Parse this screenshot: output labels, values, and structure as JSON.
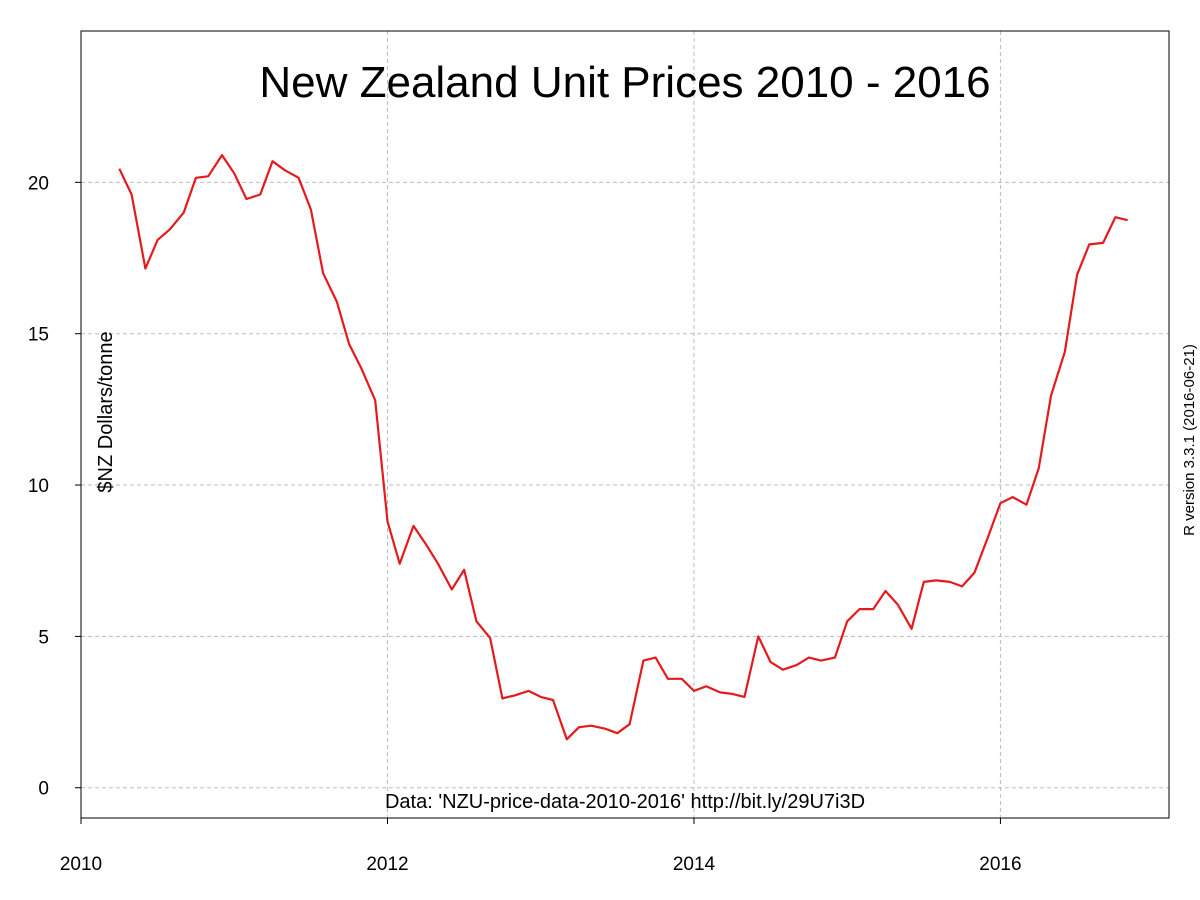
{
  "chart_data": {
    "type": "line",
    "title": "New Zealand Unit Prices 2010 - 2016",
    "ylabel": "$NZ Dollars/tonne",
    "xlabel": "",
    "side_note": "R version 3.3.1 (2016-06-21)",
    "footnote": "Data: 'NZU-price-data-2010-2016' http://bit.ly/29U7i3D",
    "xlim": [
      2010,
      2017.1
    ],
    "ylim": [
      -1,
      25
    ],
    "x_ticks": [
      {
        "value": 2010,
        "label": "2010"
      },
      {
        "value": 2012,
        "label": "2012"
      },
      {
        "value": 2014,
        "label": "2014"
      },
      {
        "value": 2016,
        "label": "2016"
      }
    ],
    "y_ticks": [
      {
        "value": 0,
        "label": "0"
      },
      {
        "value": 5,
        "label": "5"
      },
      {
        "value": 10,
        "label": "10"
      },
      {
        "value": 15,
        "label": "15"
      },
      {
        "value": 20,
        "label": "20"
      }
    ],
    "grid": true,
    "colors": {
      "line": "#e41a1c",
      "grid": "#bdbdbd",
      "axis": "#000000"
    },
    "series": [
      {
        "color": "#e41a1c",
        "x": [
          2010.25,
          2010.33,
          2010.42,
          2010.5,
          2010.58,
          2010.67,
          2010.75,
          2010.83,
          2010.92,
          2011.0,
          2011.08,
          2011.17,
          2011.25,
          2011.33,
          2011.42,
          2011.5,
          2011.58,
          2011.67,
          2011.75,
          2011.83,
          2011.92,
          2012.0,
          2012.08,
          2012.17,
          2012.25,
          2012.33,
          2012.42,
          2012.5,
          2012.58,
          2012.67,
          2012.75,
          2012.83,
          2012.92,
          2013.0,
          2013.08,
          2013.17,
          2013.25,
          2013.33,
          2013.42,
          2013.5,
          2013.58,
          2013.67,
          2013.75,
          2013.83,
          2013.92,
          2014.0,
          2014.08,
          2014.17,
          2014.25,
          2014.33,
          2014.42,
          2014.5,
          2014.58,
          2014.67,
          2014.75,
          2014.83,
          2014.92,
          2015.0,
          2015.08,
          2015.17,
          2015.25,
          2015.33,
          2015.42,
          2015.5,
          2015.58,
          2015.67,
          2015.75,
          2015.83,
          2015.92,
          2016.0,
          2016.08,
          2016.17,
          2016.25,
          2016.33,
          2016.42,
          2016.5,
          2016.58,
          2016.67,
          2016.75,
          2016.83
        ],
        "y": [
          20.45,
          19.6,
          17.15,
          18.1,
          18.45,
          19.0,
          20.15,
          20.2,
          20.9,
          20.3,
          19.45,
          19.6,
          20.7,
          20.4,
          20.15,
          19.1,
          17.0,
          16.05,
          14.65,
          13.85,
          12.8,
          8.8,
          7.4,
          8.65,
          8.05,
          7.4,
          6.55,
          7.2,
          5.5,
          4.95,
          2.95,
          3.05,
          3.2,
          3.0,
          2.9,
          1.6,
          2.0,
          2.05,
          1.95,
          1.8,
          2.1,
          4.2,
          4.3,
          3.6,
          3.6,
          3.2,
          3.35,
          3.15,
          3.1,
          3.0,
          5.0,
          4.15,
          3.9,
          4.05,
          4.3,
          4.2,
          4.3,
          5.5,
          5.9,
          5.9,
          6.5,
          6.05,
          5.25,
          6.8,
          6.85,
          6.8,
          6.65,
          7.1,
          8.3,
          9.4,
          9.6,
          9.35,
          10.55,
          12.95,
          14.4,
          16.95,
          17.95,
          18.0,
          18.85,
          18.75
        ]
      }
    ]
  }
}
